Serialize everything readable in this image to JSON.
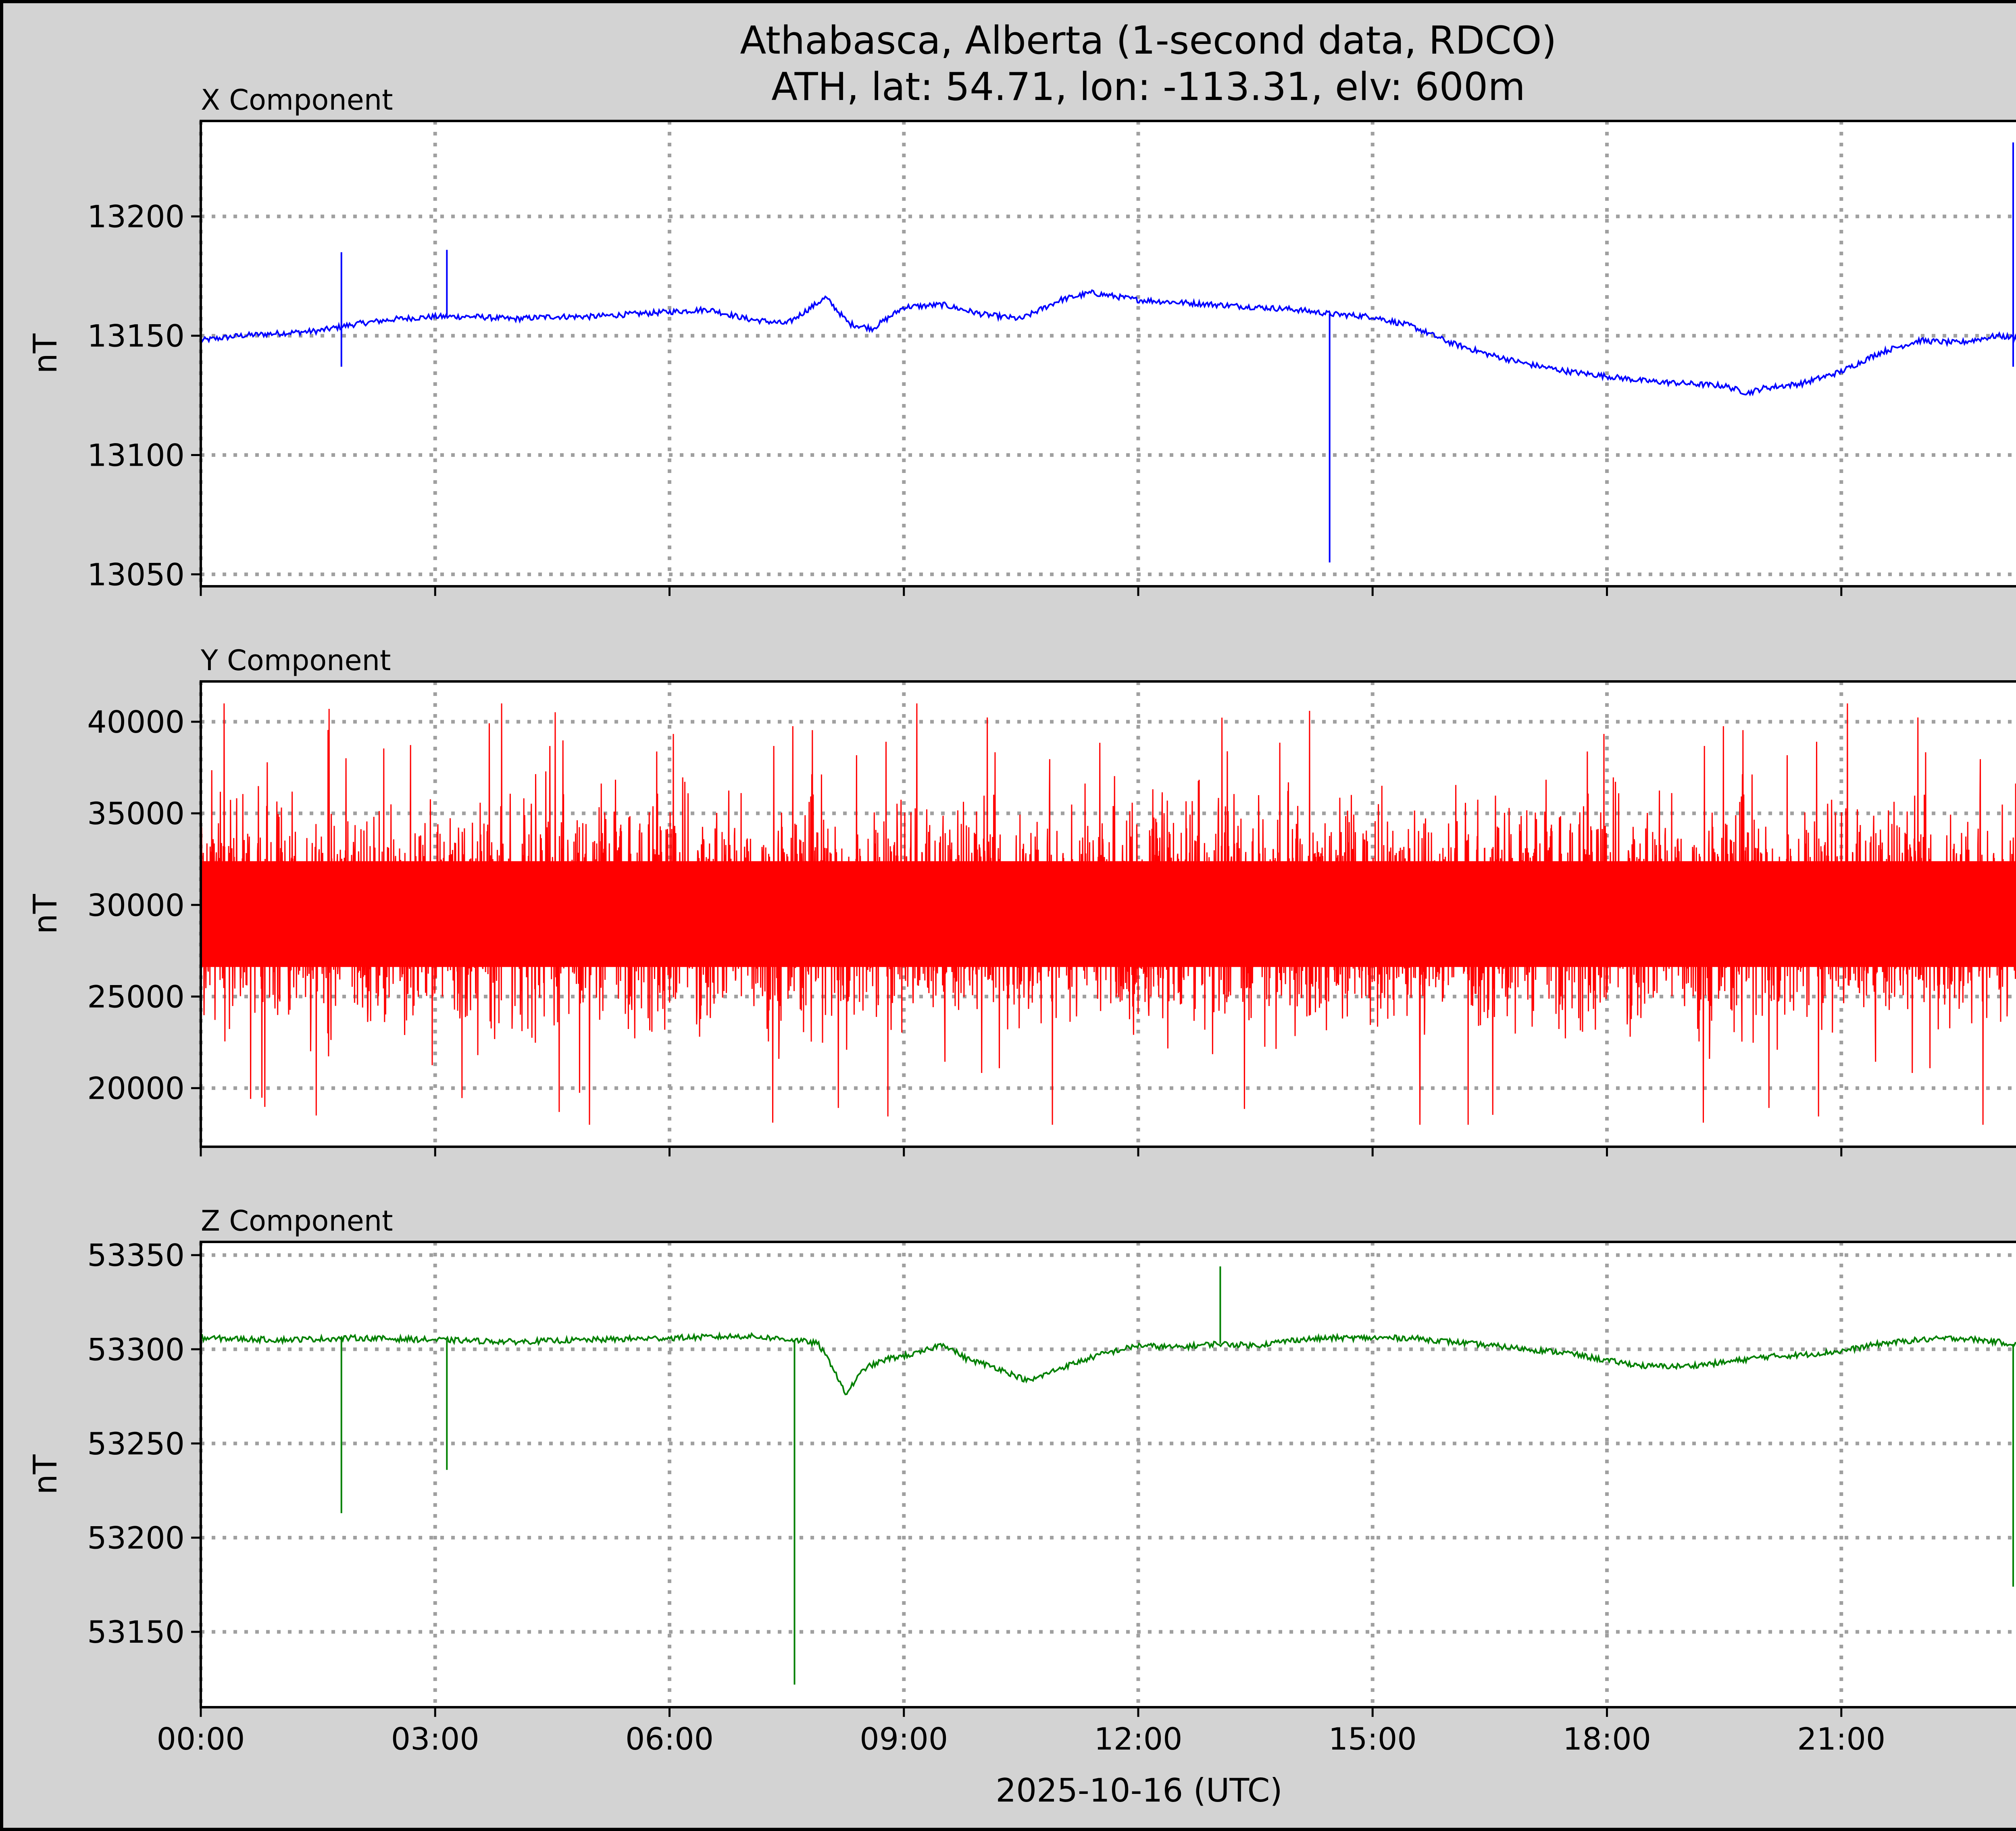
{
  "figure": {
    "title_line1": "Athabasca, Alberta (1-second data, RDCO)",
    "title_line2": "ATH, lat: 54.71, lon: -113.31, elv: 600m",
    "xlabel": "2025-10-16 (UTC)",
    "background": "#d3d3d3"
  },
  "chart_data": [
    {
      "type": "line",
      "title": "X Component",
      "ylabel": "nT",
      "color": "#0000ff",
      "xlim": [
        0,
        24
      ],
      "ylim": [
        13045,
        13240
      ],
      "yticks": [
        13050,
        13100,
        13150,
        13200
      ],
      "ytick_labels": [
        "13050",
        "13100",
        "13150",
        "13200"
      ],
      "xticks": [
        0,
        3,
        6,
        9,
        12,
        15,
        18,
        21
      ],
      "xtick_labels": [
        "00:00",
        "03:00",
        "06:00",
        "09:00",
        "12:00",
        "15:00",
        "18:00",
        "21:00"
      ],
      "grid": true,
      "series": [
        {
          "x": [
            0,
            0.5,
            1,
            1.5,
            2,
            2.5,
            3,
            3.5,
            4,
            4.5,
            5,
            5.5,
            6,
            6.5,
            7,
            7.5,
            8,
            8.3,
            8.6,
            9,
            9.5,
            10,
            10.5,
            11,
            11.4,
            12,
            12.5,
            13,
            13.5,
            14,
            14.5,
            15,
            15.5,
            16,
            16.5,
            17,
            17.5,
            18,
            18.5,
            19,
            19.5,
            19.8,
            20,
            20.5,
            21,
            21.5,
            22,
            22.5,
            23,
            23.5,
            24
          ],
          "y": [
            13148,
            13150,
            13151,
            13152,
            13155,
            13157,
            13158,
            13158,
            13157,
            13158,
            13158,
            13159,
            13160,
            13161,
            13157,
            13155,
            13166,
            13155,
            13153,
            13162,
            13163,
            13159,
            13157,
            13165,
            13168,
            13165,
            13164,
            13163,
            13162,
            13161,
            13159,
            13158,
            13154,
            13147,
            13142,
            13138,
            13135,
            13133,
            13131,
            13130,
            13129,
            13126,
            13128,
            13130,
            13135,
            13143,
            13148,
            13147,
            13150,
            13148,
            13158
          ]
        }
      ],
      "spikes": [
        {
          "x": 1.8,
          "y": 13185
        },
        {
          "x": 1.8,
          "y": 13137
        },
        {
          "x": 3.15,
          "y": 13186
        },
        {
          "x": 14.45,
          "y": 13055
        },
        {
          "x": 23.2,
          "y": 13231
        },
        {
          "x": 23.2,
          "y": 13137
        }
      ]
    },
    {
      "type": "line",
      "title": "Y Component",
      "ylabel": "nT",
      "color": "#ff0000",
      "xlim": [
        0,
        24
      ],
      "ylim": [
        16800,
        42200
      ],
      "yticks": [
        20000,
        25000,
        30000,
        35000,
        40000
      ],
      "ytick_labels": [
        "20000",
        "25000",
        "30000",
        "35000",
        "40000"
      ],
      "xticks": [
        0,
        3,
        6,
        9,
        12,
        15,
        18,
        21
      ],
      "xtick_labels": [
        "00:00",
        "03:00",
        "06:00",
        "09:00",
        "12:00",
        "15:00",
        "18:00",
        "21:00"
      ],
      "grid": true,
      "noise_band": {
        "center": 29500,
        "typical_low": 24500,
        "typical_high": 35000,
        "min": 18000,
        "max": 41000
      },
      "series": [
        {
          "x": [
            0,
            24
          ],
          "y": [
            29500,
            29500
          ]
        }
      ]
    },
    {
      "type": "line",
      "title": "Z Component",
      "ylabel": "nT",
      "color": "#008000",
      "xlim": [
        0,
        24
      ],
      "ylim": [
        53110,
        53357
      ],
      "yticks": [
        53150,
        53200,
        53250,
        53300,
        53350
      ],
      "ytick_labels": [
        "53150",
        "53200",
        "53250",
        "53300",
        "53350"
      ],
      "xticks": [
        0,
        3,
        6,
        9,
        12,
        15,
        18,
        21
      ],
      "xtick_labels": [
        "00:00",
        "03:00",
        "06:00",
        "09:00",
        "12:00",
        "15:00",
        "18:00",
        "21:00"
      ],
      "grid": true,
      "series": [
        {
          "x": [
            0,
            1,
            2,
            3,
            4,
            5,
            6,
            7,
            7.6,
            7.9,
            8.1,
            8.25,
            8.5,
            8.8,
            9.2,
            9.5,
            9.8,
            10.2,
            10.6,
            11,
            11.5,
            12,
            12.5,
            13,
            13.5,
            14,
            14.5,
            15,
            15.5,
            16,
            16.5,
            17,
            17.5,
            18,
            18.5,
            19,
            19.5,
            20,
            20.5,
            21,
            21.5,
            22,
            22.5,
            23,
            23.5,
            24
          ],
          "y": [
            53306,
            53305,
            53306,
            53305,
            53304,
            53305,
            53306,
            53307,
            53305,
            53303,
            53290,
            53276,
            53290,
            53295,
            53298,
            53303,
            53295,
            53290,
            53283,
            53290,
            53297,
            53302,
            53301,
            53303,
            53302,
            53305,
            53306,
            53306,
            53306,
            53304,
            53302,
            53300,
            53298,
            53294,
            53291,
            53291,
            53293,
            53296,
            53297,
            53299,
            53303,
            53305,
            53306,
            53304,
            53301,
            53305
          ]
        }
      ],
      "spikes": [
        {
          "x": 1.8,
          "y": 53213
        },
        {
          "x": 3.15,
          "y": 53236
        },
        {
          "x": 7.6,
          "y": 53122
        },
        {
          "x": 13.05,
          "y": 53344
        },
        {
          "x": 23.2,
          "y": 53174
        }
      ]
    }
  ]
}
